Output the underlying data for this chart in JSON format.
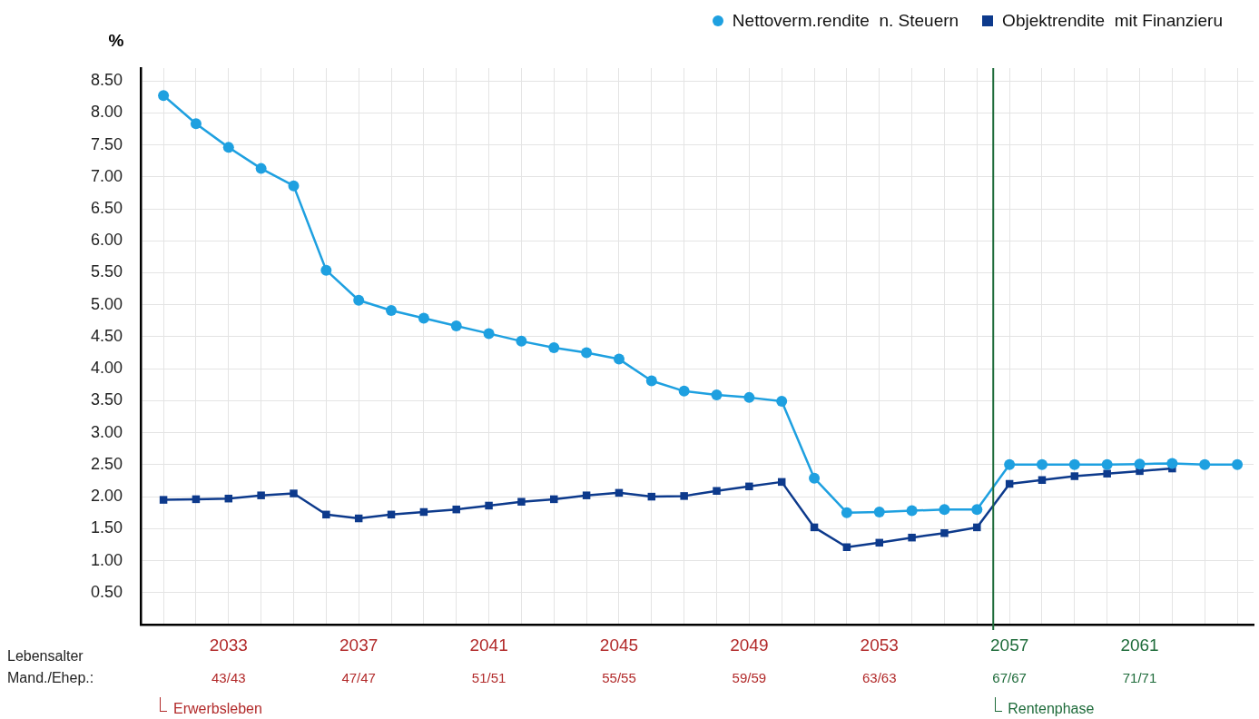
{
  "chart_data": {
    "type": "line",
    "ylabel": "%",
    "x": [
      2031,
      2032,
      2033,
      2034,
      2035,
      2036,
      2037,
      2038,
      2039,
      2040,
      2041,
      2042,
      2043,
      2044,
      2045,
      2046,
      2047,
      2048,
      2049,
      2050,
      2051,
      2052,
      2053,
      2054,
      2055,
      2056,
      2057,
      2058,
      2059,
      2060,
      2061,
      2062,
      2063,
      2064
    ],
    "series": [
      {
        "name": "Nettoverm.rendite  n. Steuern",
        "color": "#1ea0e0",
        "marker": "circle",
        "values": [
          8.27,
          7.83,
          7.46,
          7.13,
          6.86,
          5.54,
          5.07,
          4.91,
          4.79,
          4.67,
          4.55,
          4.43,
          4.33,
          4.25,
          4.15,
          3.81,
          3.65,
          3.59,
          3.55,
          3.49,
          2.29,
          1.75,
          1.76,
          1.78,
          1.8,
          1.8,
          2.5,
          2.5,
          2.5,
          2.5,
          2.51,
          2.52,
          2.5,
          2.5
        ]
      },
      {
        "name": "Objektrendite  mit Finanzieru",
        "color": "#0d3a8c",
        "marker": "square",
        "values": [
          1.95,
          1.96,
          1.97,
          2.02,
          2.05,
          1.72,
          1.66,
          1.72,
          1.76,
          1.8,
          1.86,
          1.92,
          1.96,
          2.02,
          2.06,
          2.0,
          2.01,
          2.09,
          2.16,
          2.23,
          1.52,
          1.21,
          1.28,
          1.36,
          1.43,
          1.52,
          2.2,
          2.26,
          2.32,
          2.36,
          2.4,
          2.44,
          null,
          null
        ]
      }
    ],
    "xlim": [
      2030.3,
      2064.5
    ],
    "xticks": [
      {
        "value": 2031,
        "label": null
      },
      {
        "value": 2032,
        "label": null
      },
      2033,
      {
        "value": 2034,
        "label": null
      },
      {
        "value": 2035,
        "label": null
      },
      {
        "value": 2036,
        "label": null
      },
      2037,
      {
        "value": 2038,
        "label": null
      },
      {
        "value": 2039,
        "label": null
      },
      {
        "value": 2040,
        "label": null
      },
      2041,
      {
        "value": 2042,
        "label": null
      },
      {
        "value": 2043,
        "label": null
      },
      {
        "value": 2044,
        "label": null
      },
      2045,
      {
        "value": 2046,
        "label": null
      },
      {
        "value": 2047,
        "label": null
      },
      {
        "value": 2048,
        "label": null
      },
      2049,
      {
        "value": 2050,
        "label": null
      },
      {
        "value": 2051,
        "label": null
      },
      {
        "value": 2052,
        "label": null
      },
      2053,
      {
        "value": 2054,
        "label": null
      },
      {
        "value": 2055,
        "label": null
      },
      {
        "value": 2056,
        "label": null
      },
      2057,
      {
        "value": 2058,
        "label": null
      },
      {
        "value": 2059,
        "label": null
      },
      {
        "value": 2060,
        "label": null
      },
      2061,
      {
        "value": 2062,
        "label": null
      },
      {
        "value": 2063,
        "label": null
      },
      {
        "value": 2064,
        "label": null
      }
    ],
    "ylim": [
      0,
      8.7
    ],
    "yticks": [
      {
        "value": 0.5,
        "label": "0.50"
      },
      {
        "value": 1,
        "label": "1.00"
      },
      {
        "value": 1.5,
        "label": "1.50"
      },
      {
        "value": 2,
        "label": "2.00"
      },
      {
        "value": 2.5,
        "label": "2.50"
      },
      {
        "value": 3,
        "label": "3.00"
      },
      {
        "value": 3.5,
        "label": "3.50"
      },
      {
        "value": 4,
        "label": "4.00"
      },
      {
        "value": 4.5,
        "label": "4.50"
      },
      {
        "value": 5,
        "label": "5.00"
      },
      {
        "value": 5.5,
        "label": "5.50"
      },
      {
        "value": 6,
        "label": "6.00"
      },
      {
        "value": 6.5,
        "label": "6.50"
      },
      {
        "value": 7,
        "label": "7.00"
      },
      {
        "value": 7.5,
        "label": "7.50"
      },
      {
        "value": 8,
        "label": "8.00"
      },
      {
        "value": 8.5,
        "label": "8.50"
      }
    ],
    "grid": true,
    "legend": "top right",
    "line_style": "solid",
    "ref_lines": [
      {
        "axis": "x",
        "value": 2056.5,
        "color": "#1e6b3a"
      }
    ],
    "annotations": [
      "Lebensalter",
      "Mand./Ehep.:",
      "Erwerbsleben",
      "Rentenphase",
      "43/43",
      "47/47",
      "51/51",
      "55/55",
      "59/59",
      "63/63",
      "67/67",
      "71/71"
    ]
  }
}
